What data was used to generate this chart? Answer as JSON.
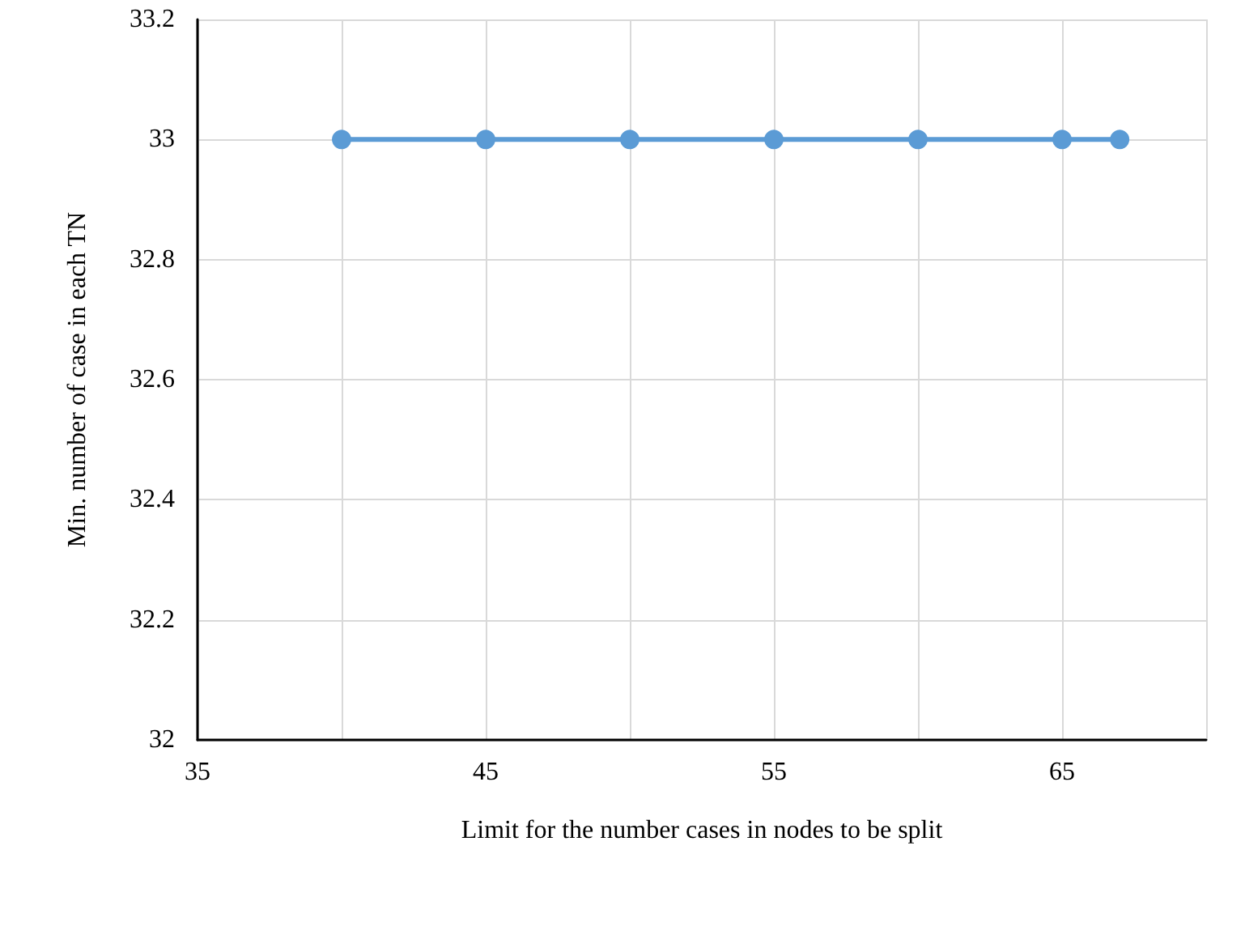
{
  "chart_data": {
    "type": "line",
    "xlabel": "Limit for the number cases in nodes to be split",
    "ylabel": "Min. number of case in each TN",
    "x": [
      40,
      45,
      50,
      55,
      60,
      65,
      67
    ],
    "series": [
      {
        "color": "#5b9bd5",
        "values": [
          33,
          33,
          33,
          33,
          33,
          33,
          33
        ]
      }
    ],
    "xlim": [
      35,
      70
    ],
    "xticks": [
      35,
      {
        "value": 40,
        "label": null
      },
      45,
      {
        "value": 50,
        "label": null
      },
      55,
      {
        "value": 60,
        "label": null
      },
      65,
      {
        "value": 70,
        "label": null
      }
    ],
    "ylim": [
      32,
      33.2
    ],
    "yticks": [
      32,
      32.2,
      32.4,
      32.6,
      32.8,
      33,
      33.2
    ],
    "grid": true,
    "marker": "circle",
    "line_style": "solid"
  }
}
